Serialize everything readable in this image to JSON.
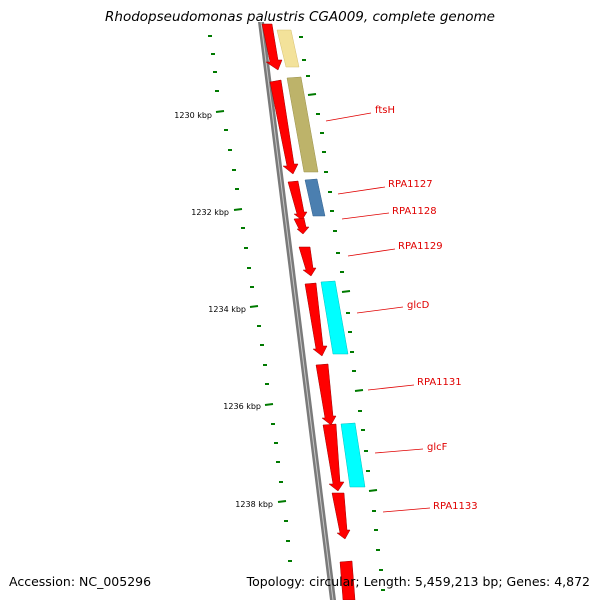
{
  "title": "Rhodopseudomonas palustris CGA009, complete genome",
  "footer": {
    "accession": "Accession: NC_005296",
    "summary": "Topology: circular; Length: 5,459,213 bp; Genes: 4,872"
  },
  "ruler_labels": [
    "1230 kbp",
    "1232 kbp",
    "1234 kbp",
    "1236 kbp",
    "1238 kbp"
  ],
  "gene_labels": [
    "ftsH",
    "RPA1127",
    "RPA1128",
    "RPA1129",
    "glcD",
    "RPA1131",
    "glcF",
    "RPA1133"
  ],
  "colors": {
    "backbone": "#7a7a7a",
    "cds": "#ff0000",
    "ruler": "#007a00",
    "label": "#e00000",
    "feature_yellow": "#f3e29a",
    "feature_olive": "#bdb36a",
    "feature_blue": "#4b7fb0",
    "feature_cyan": "#00ffff"
  }
}
